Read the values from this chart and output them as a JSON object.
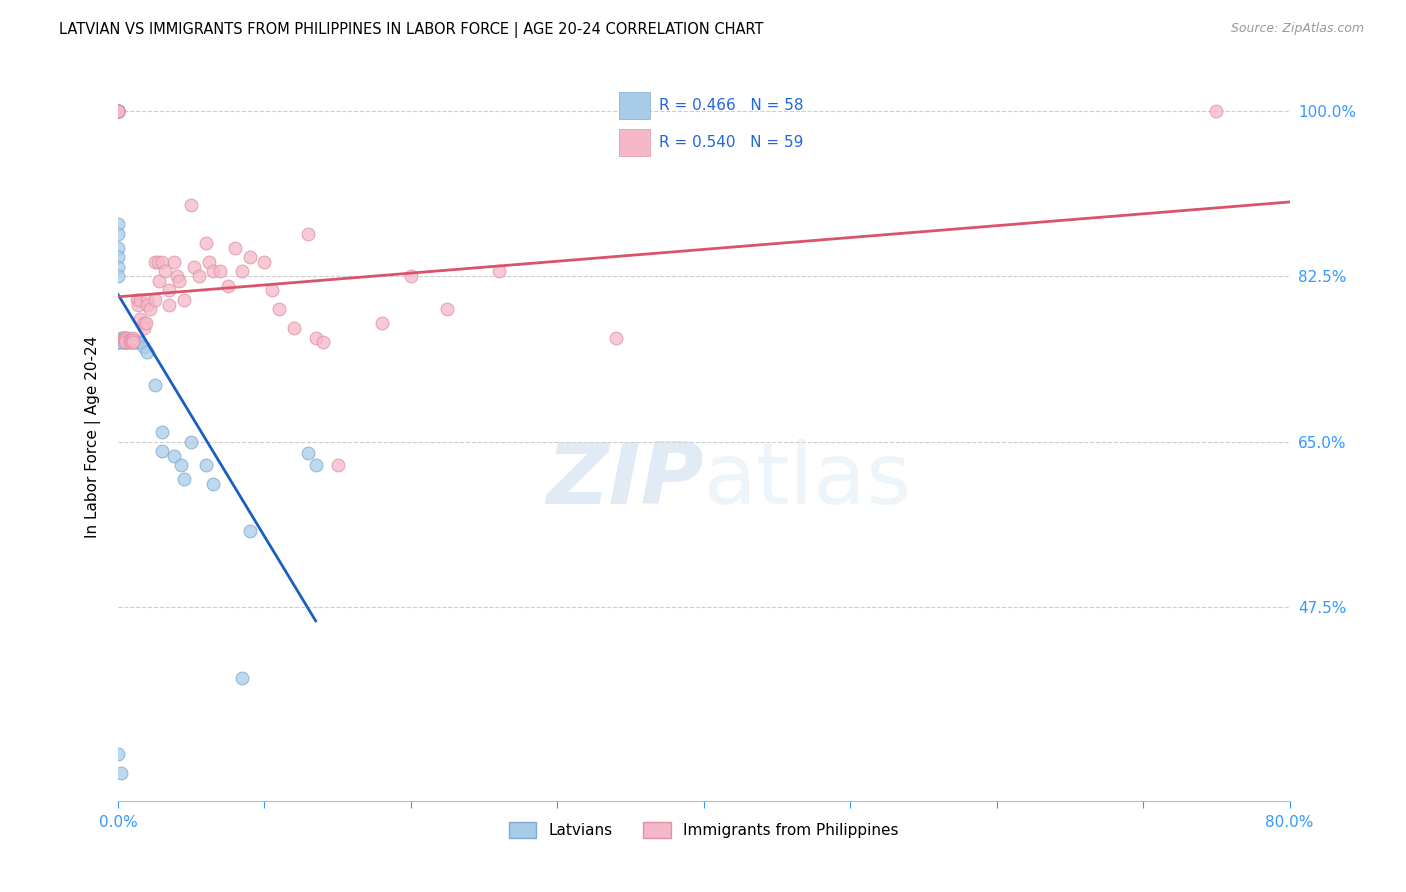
{
  "title": "LATVIAN VS IMMIGRANTS FROM PHILIPPINES IN LABOR FORCE | AGE 20-24 CORRELATION CHART",
  "source": "Source: ZipAtlas.com",
  "ylabel": "In Labor Force | Age 20-24",
  "xlim": [
    0.0,
    0.8
  ],
  "ylim": [
    0.27,
    1.04
  ],
  "ytick_vals": [
    0.475,
    0.65,
    0.825,
    1.0
  ],
  "ytick_labels": [
    "47.5%",
    "65.0%",
    "82.5%",
    "100.0%"
  ],
  "xtick_vals": [
    0.0,
    0.1,
    0.2,
    0.3,
    0.4,
    0.5,
    0.6,
    0.7,
    0.8
  ],
  "xtick_labels": [
    "0.0%",
    "",
    "",
    "",
    "",
    "",
    "",
    "",
    "80.0%"
  ],
  "legend_label_blue": "Latvians",
  "legend_label_pink": "Immigrants from Philippines",
  "blue_face": "#a8cce8",
  "blue_edge": "#80aad0",
  "pink_face": "#f5b8c8",
  "pink_edge": "#e090a8",
  "blue_line": "#1a5fbf",
  "pink_line": "#d9536a",
  "legend_text_color": "#2266dd",
  "axis_tick_color": "#3399ff",
  "watermark_color": "#ddeeff",
  "blue_x": [
    0.0,
    0.0,
    0.0,
    0.0,
    0.0,
    0.0,
    0.0,
    0.0,
    0.0,
    0.0,
    0.0,
    0.0,
    0.0,
    0.0,
    0.0,
    0.0,
    0.003,
    0.003,
    0.003,
    0.003,
    0.004,
    0.004,
    0.005,
    0.005,
    0.005,
    0.005,
    0.006,
    0.006,
    0.007,
    0.007,
    0.008,
    0.01,
    0.01,
    0.01,
    0.012,
    0.013,
    0.015,
    0.015,
    0.018,
    0.02,
    0.025,
    0.03,
    0.03,
    0.038,
    0.043,
    0.045,
    0.05,
    0.06,
    0.065,
    0.085,
    0.09,
    0.13,
    0.135,
    0.0,
    0.0,
    0.0,
    0.0,
    0.002
  ],
  "blue_y": [
    1.0,
    1.0,
    1.0,
    1.0,
    1.0,
    1.0,
    1.0,
    1.0,
    1.0,
    1.0,
    0.88,
    0.87,
    0.855,
    0.845,
    0.835,
    0.825,
    0.76,
    0.76,
    0.755,
    0.755,
    0.758,
    0.755,
    0.76,
    0.758,
    0.755,
    0.755,
    0.76,
    0.755,
    0.758,
    0.755,
    0.755,
    0.758,
    0.755,
    0.755,
    0.755,
    0.755,
    0.755,
    0.755,
    0.75,
    0.745,
    0.71,
    0.66,
    0.64,
    0.635,
    0.625,
    0.61,
    0.65,
    0.625,
    0.605,
    0.4,
    0.555,
    0.638,
    0.625,
    0.755,
    0.755,
    0.755,
    0.32,
    0.3
  ],
  "pink_x": [
    0.0,
    0.0,
    0.0,
    0.004,
    0.004,
    0.005,
    0.005,
    0.005,
    0.008,
    0.008,
    0.009,
    0.01,
    0.01,
    0.01,
    0.013,
    0.014,
    0.015,
    0.015,
    0.018,
    0.018,
    0.019,
    0.02,
    0.02,
    0.022,
    0.025,
    0.025,
    0.027,
    0.028,
    0.03,
    0.032,
    0.035,
    0.035,
    0.038,
    0.04,
    0.042,
    0.045,
    0.05,
    0.052,
    0.055,
    0.06,
    0.062,
    0.065,
    0.07,
    0.075,
    0.08,
    0.085,
    0.09,
    0.1,
    0.105,
    0.11,
    0.12,
    0.13,
    0.135,
    0.14,
    0.15,
    0.18,
    0.2,
    0.225,
    0.26,
    0.34,
    0.75
  ],
  "pink_y": [
    1.0,
    1.0,
    1.0,
    0.76,
    0.758,
    0.76,
    0.758,
    0.755,
    0.758,
    0.755,
    0.758,
    0.76,
    0.758,
    0.755,
    0.8,
    0.795,
    0.8,
    0.78,
    0.775,
    0.77,
    0.775,
    0.8,
    0.795,
    0.79,
    0.84,
    0.8,
    0.84,
    0.82,
    0.84,
    0.83,
    0.81,
    0.795,
    0.84,
    0.825,
    0.82,
    0.8,
    0.9,
    0.835,
    0.825,
    0.86,
    0.84,
    0.83,
    0.83,
    0.815,
    0.855,
    0.83,
    0.845,
    0.84,
    0.81,
    0.79,
    0.77,
    0.87,
    0.76,
    0.755,
    0.625,
    0.775,
    0.825,
    0.79,
    0.83,
    0.76,
    1.0
  ],
  "figsize": [
    14.06,
    8.92
  ],
  "dpi": 100
}
